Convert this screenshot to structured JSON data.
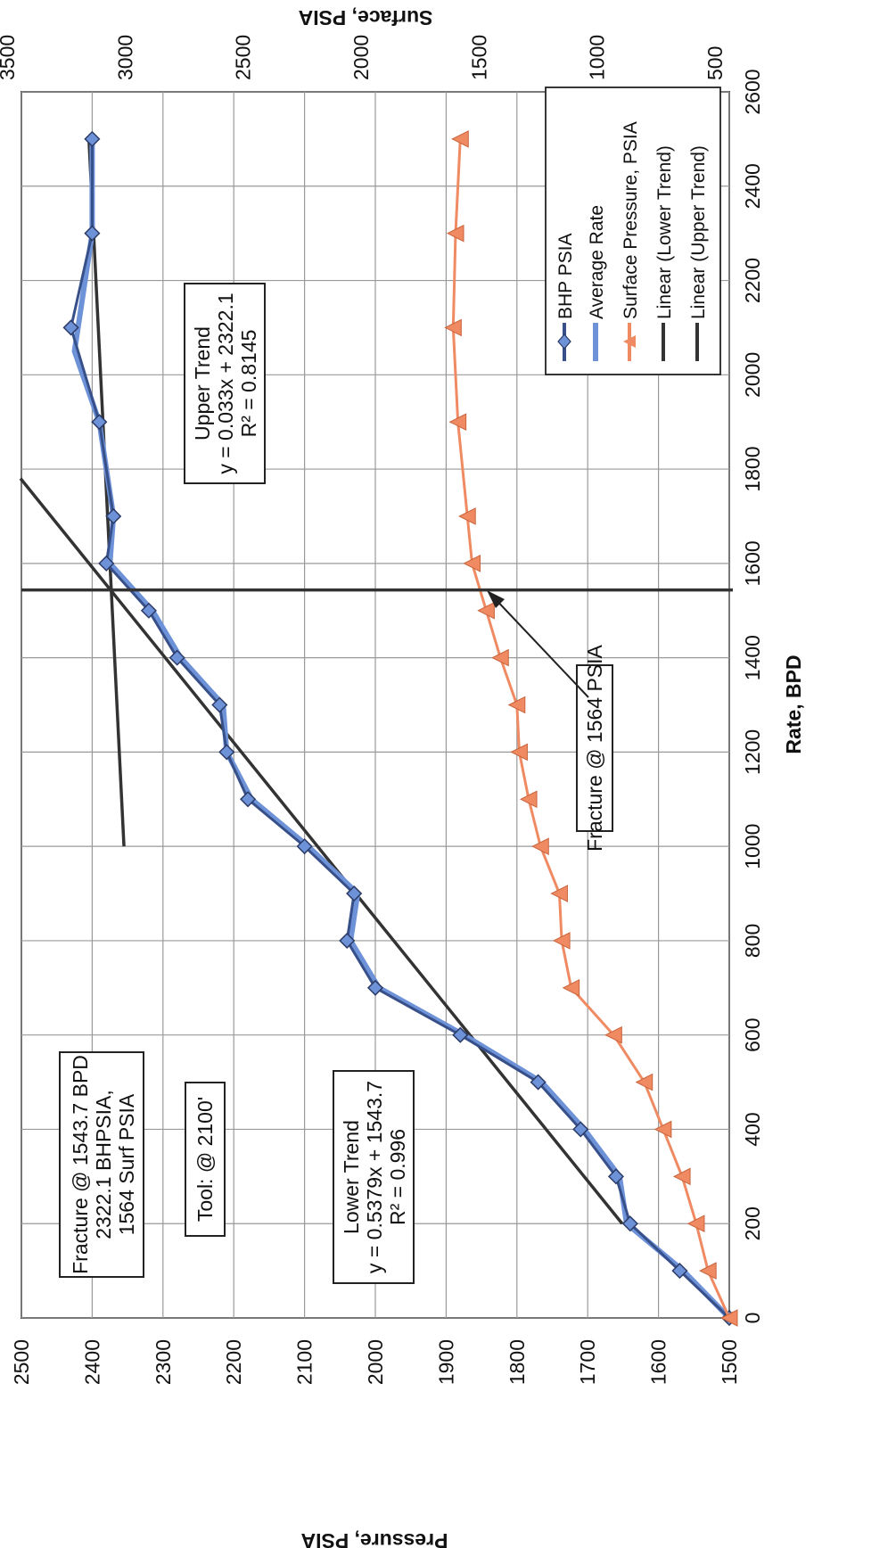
{
  "chart_data": {
    "type": "line",
    "orientation": "rotated-90-clockwise",
    "x_axis": {
      "label": "Rate, BPD",
      "ticks": [
        "0",
        "200",
        "400",
        "600",
        "800",
        "1000",
        "1200",
        "1400",
        "1600",
        "1800",
        "2000",
        "2200",
        "2400",
        "2600"
      ],
      "range": [
        0,
        2600
      ]
    },
    "y_left": {
      "label": "Pressure, PSIA",
      "ticks": [
        "1500",
        "1600",
        "1700",
        "1800",
        "1900",
        "2000",
        "2100",
        "2200",
        "2300",
        "2400",
        "2500"
      ],
      "range": [
        1500,
        2500
      ]
    },
    "y_right": {
      "label": "Surface, PSIA",
      "ticks": [
        "500",
        "1000",
        "1500",
        "2000",
        "2500",
        "3000",
        "3500"
      ],
      "range": [
        500,
        3500
      ]
    },
    "grid": true,
    "legend_position": "top-right",
    "legend": [
      "BHP PSIA",
      "Average Rate",
      "Surface Pressure, PSIA",
      "Linear (Lower Trend)",
      "Linear (Upper Trend)"
    ],
    "series": [
      {
        "name": "BHP PSIA",
        "axis": "left",
        "color": "#37508a",
        "marker": "diamond",
        "x": [
          0,
          100,
          200,
          300,
          400,
          500,
          600,
          700,
          800,
          900,
          1000,
          1100,
          1200,
          1300,
          1400,
          1500,
          1600,
          1700,
          1900,
          2100,
          2300,
          2500
        ],
        "y": [
          1500,
          1570,
          1640,
          1660,
          1710,
          1770,
          1880,
          2000,
          2040,
          2030,
          2100,
          2180,
          2210,
          2220,
          2280,
          2320,
          2380,
          2370,
          2390,
          2430,
          2400,
          2400
        ]
      },
      {
        "name": "Average Rate",
        "axis": "left",
        "color": "#6e92d8",
        "x": [
          0,
          100,
          200,
          300,
          400,
          500,
          600,
          700,
          800,
          900,
          1000,
          1100,
          1200,
          1300,
          1400,
          1500,
          1600,
          1700,
          1900,
          2050,
          2300,
          2500
        ],
        "y": [
          1500,
          1565,
          1645,
          1655,
          1705,
          1765,
          1875,
          1995,
          2035,
          2025,
          2095,
          2175,
          2210,
          2215,
          2275,
          2315,
          2375,
          2370,
          2390,
          2425,
          2400,
          2400
        ]
      },
      {
        "name": "Surface Pressure, PSIA",
        "axis": "right",
        "color": "#ef8a62",
        "marker": "triangle",
        "x": [
          0,
          100,
          200,
          300,
          400,
          500,
          600,
          700,
          800,
          900,
          1000,
          1100,
          1200,
          1300,
          1400,
          1500,
          1600,
          1700,
          1900,
          2100,
          2300,
          2500
        ],
        "y": [
          500,
          590,
          640,
          700,
          780,
          860,
          990,
          1170,
          1210,
          1220,
          1300,
          1350,
          1390,
          1400,
          1470,
          1530,
          1590,
          1610,
          1650,
          1670,
          1660,
          1640
        ]
      },
      {
        "name": "Linear (Lower Trend)",
        "axis": "left",
        "color": "#333333",
        "x": [
          200,
          1780
        ],
        "y": [
          1651.3,
          2501.2
        ]
      },
      {
        "name": "Linear (Upper Trend)",
        "axis": "left",
        "color": "#333333",
        "x": [
          1000,
          2500
        ],
        "y": [
          2355.1,
          2404.6
        ]
      }
    ],
    "vertical_line_x": 1543.7,
    "annotations": {
      "fracture_summary": [
        "Fracture @ 1543.7 BPD",
        "2322.1 BHPSIA,",
        "1564 Surf PSIA"
      ],
      "tool": "Tool: @ 2100'",
      "lower_trend": [
        "Lower Trend",
        "y = 0.5379x + 1543.7",
        "R² = 0.996"
      ],
      "upper_trend": [
        "Upper Trend",
        "y = 0.033x + 2322.1",
        "R² = 0.8145"
      ],
      "fracture_surface": "Fracture @ 1564 PSIA"
    }
  }
}
